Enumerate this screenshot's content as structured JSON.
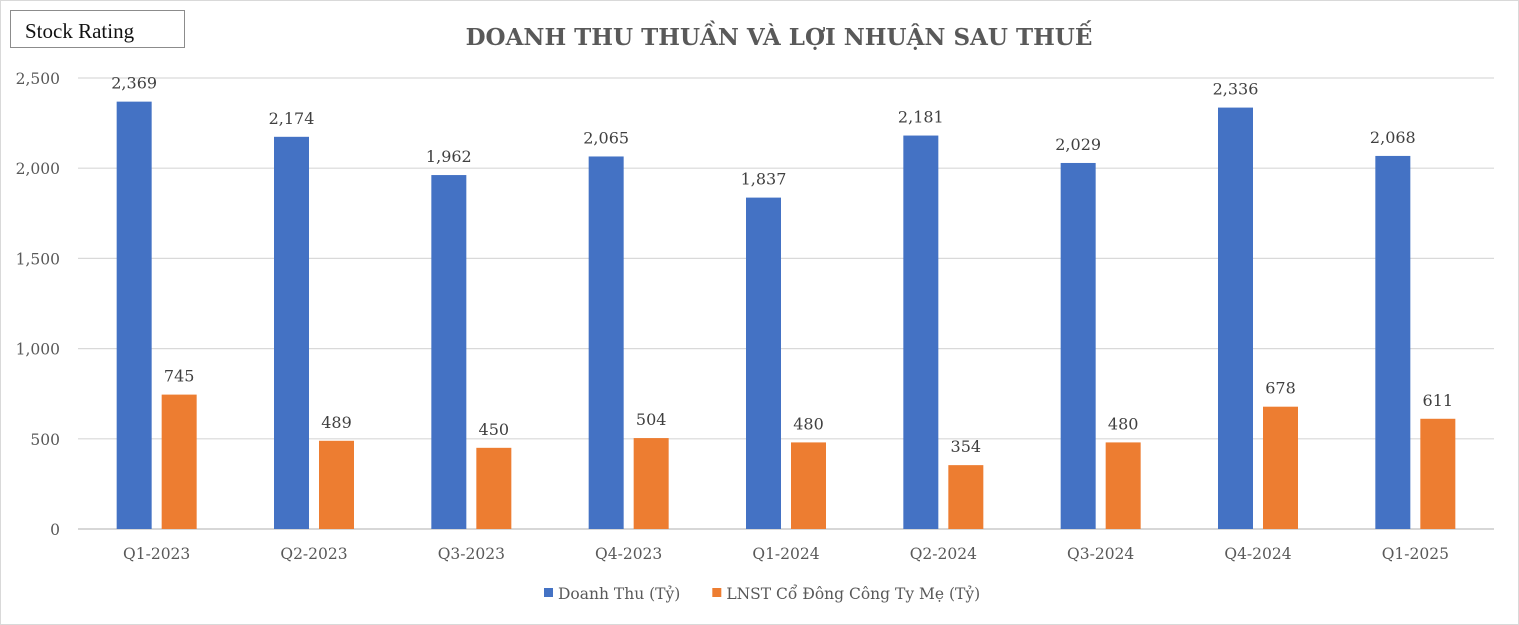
{
  "badge": {
    "label": "Stock Rating"
  },
  "chart_data": {
    "type": "bar",
    "title": "DOANH THU THUẦN VÀ LỢI NHUẬN SAU THUẾ",
    "categories": [
      "Q1-2023",
      "Q2-2023",
      "Q3-2023",
      "Q4-2023",
      "Q1-2024",
      "Q2-2024",
      "Q3-2024",
      "Q4-2024",
      "Q1-2025"
    ],
    "series": [
      {
        "name": "Doanh Thu (Tỷ)",
        "color": "#4472c4",
        "values": [
          2369,
          2174,
          1962,
          2065,
          1837,
          2181,
          2029,
          2336,
          2068
        ]
      },
      {
        "name": "LNST Cổ Đông Công Ty Mẹ (Tỷ)",
        "color": "#ed7d31",
        "values": [
          745,
          489,
          450,
          504,
          480,
          354,
          480,
          678,
          611
        ]
      }
    ],
    "yticks": [
      0,
      500,
      1000,
      1500,
      2000,
      2500
    ],
    "ylim": [
      0,
      2500
    ],
    "grid": true,
    "legend": "bottom",
    "data_labels": true
  }
}
